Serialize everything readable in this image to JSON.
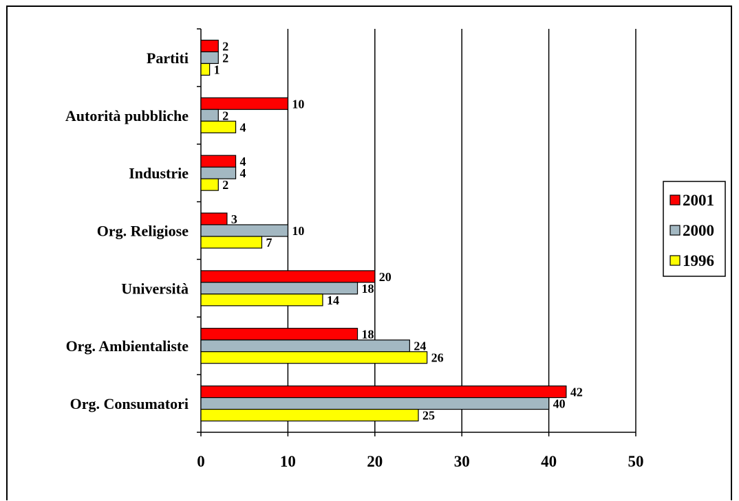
{
  "chart_data": {
    "type": "bar",
    "orientation": "horizontal",
    "categories": [
      "Org. Consumatori",
      "Org. Ambientaliste",
      "Università",
      "Org. Religiose",
      "Industrie",
      "Autorità pubbliche",
      "Partiti"
    ],
    "series": [
      {
        "name": "2001",
        "color": "#ff0000",
        "values": [
          42,
          18,
          20,
          3,
          4,
          10,
          2
        ]
      },
      {
        "name": "2000",
        "color": "#a3b8c2",
        "values": [
          40,
          24,
          18,
          10,
          4,
          2,
          2
        ]
      },
      {
        "name": "1996",
        "color": "#ffff00",
        "values": [
          25,
          26,
          14,
          7,
          2,
          4,
          1
        ]
      }
    ],
    "xlim": [
      0,
      50
    ],
    "xticks": [
      "0",
      "10",
      "20",
      "30",
      "40",
      "50"
    ],
    "grid": "vertical",
    "legend_position": "right",
    "data_labels": true
  }
}
